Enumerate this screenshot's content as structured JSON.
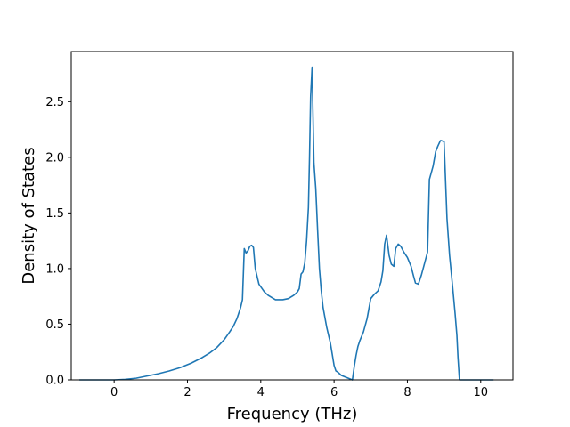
{
  "chart_data": {
    "type": "line",
    "title": "",
    "xlabel": "Frequency (THz)",
    "ylabel": "Density of States",
    "xlim": [
      -1.17,
      10.88
    ],
    "ylim": [
      0,
      2.95
    ],
    "xticks": [
      0,
      2,
      4,
      6,
      8,
      10
    ],
    "yticks": [
      0.0,
      0.5,
      1.0,
      1.5,
      2.0,
      2.5
    ],
    "ytick_labels": [
      "0.0",
      "0.5",
      "1.0",
      "1.5",
      "2.0",
      "2.5"
    ],
    "grid": false,
    "legend": "none",
    "series": [
      {
        "color": "#1f77b4",
        "x": [
          -0.95,
          -0.5,
          0.0,
          0.3,
          0.6,
          0.9,
          1.2,
          1.5,
          1.8,
          2.1,
          2.4,
          2.6,
          2.8,
          3.0,
          3.15,
          3.25,
          3.35,
          3.45,
          3.5,
          3.55,
          3.6,
          3.65,
          3.7,
          3.75,
          3.8,
          3.85,
          3.95,
          4.1,
          4.2,
          4.4,
          4.6,
          4.75,
          4.9,
          5.0,
          5.05,
          5.1,
          5.15,
          5.2,
          5.25,
          5.3,
          5.33,
          5.36,
          5.4,
          5.45,
          5.5,
          5.55,
          5.6,
          5.65,
          5.7,
          5.8,
          5.9,
          6.0,
          6.05,
          6.1,
          6.2,
          6.35,
          6.5,
          6.55,
          6.6,
          6.65,
          6.7,
          6.8,
          6.9,
          7.0,
          7.05,
          7.1,
          7.2,
          7.28,
          7.33,
          7.38,
          7.43,
          7.5,
          7.56,
          7.63,
          7.68,
          7.75,
          7.82,
          7.9,
          8.0,
          8.1,
          8.17,
          8.22,
          8.3,
          8.38,
          8.47,
          8.55,
          8.6,
          8.7,
          8.77,
          8.83,
          8.9,
          8.93,
          9.0,
          9.08,
          9.15,
          9.23,
          9.3,
          9.35,
          9.38,
          9.42,
          9.5,
          9.8,
          10.05,
          10.35
        ],
        "y": [
          0.0,
          0.0,
          0.0,
          0.005,
          0.015,
          0.035,
          0.055,
          0.08,
          0.11,
          0.15,
          0.2,
          0.24,
          0.29,
          0.36,
          0.43,
          0.48,
          0.55,
          0.65,
          0.72,
          1.18,
          1.14,
          1.16,
          1.2,
          1.21,
          1.19,
          1.0,
          0.86,
          0.79,
          0.76,
          0.72,
          0.72,
          0.73,
          0.76,
          0.79,
          0.82,
          0.95,
          0.97,
          1.05,
          1.25,
          1.55,
          2.0,
          2.55,
          2.81,
          1.95,
          1.72,
          1.35,
          1.0,
          0.8,
          0.65,
          0.47,
          0.33,
          0.13,
          0.08,
          0.07,
          0.04,
          0.02,
          0.0,
          0.12,
          0.22,
          0.3,
          0.35,
          0.43,
          0.55,
          0.73,
          0.75,
          0.77,
          0.8,
          0.88,
          0.98,
          1.22,
          1.3,
          1.12,
          1.04,
          1.02,
          1.18,
          1.22,
          1.2,
          1.15,
          1.1,
          1.02,
          0.93,
          0.87,
          0.86,
          0.94,
          1.05,
          1.15,
          1.8,
          1.92,
          2.05,
          2.1,
          2.15,
          2.15,
          2.14,
          1.45,
          1.12,
          0.85,
          0.6,
          0.4,
          0.2,
          0.0,
          0.0,
          0.0,
          0.0,
          0.0
        ]
      }
    ]
  }
}
